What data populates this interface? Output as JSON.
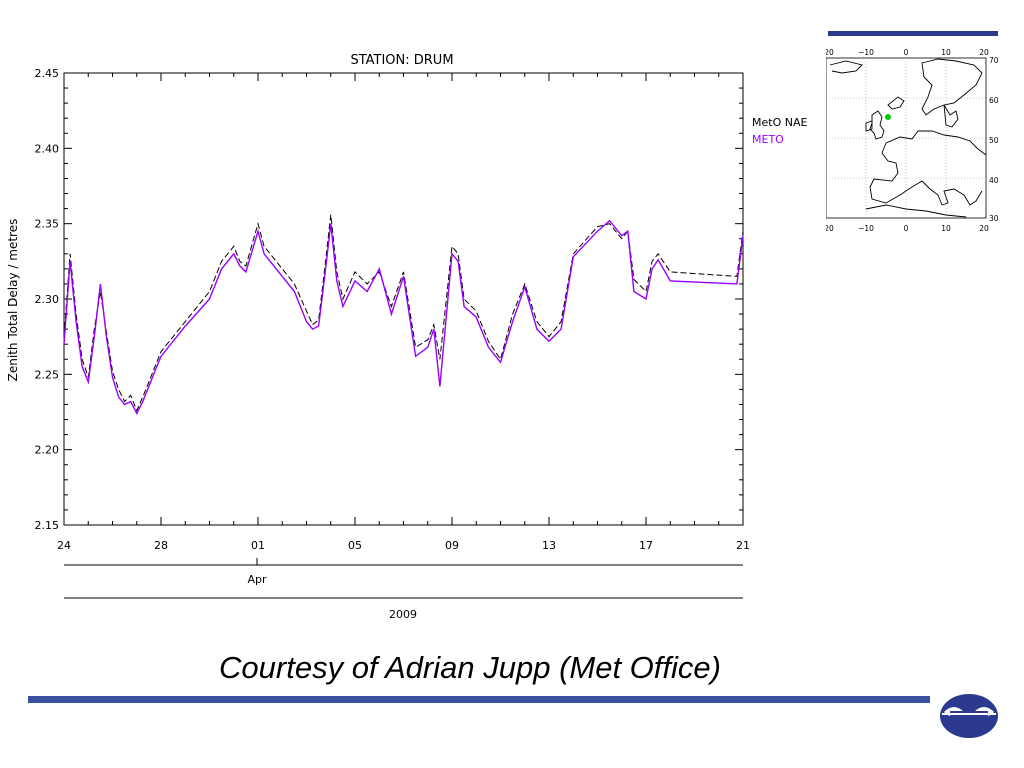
{
  "slide": {
    "caption": "Courtesy of Adrian Jupp (Met Office)",
    "rule_color": "#3a4fa0"
  },
  "legend": {
    "items": [
      {
        "label": "MetO NAE",
        "color": "#000000"
      },
      {
        "label": "METO",
        "color": "#9900ff"
      }
    ]
  },
  "map": {
    "top_ticks": [
      "20",
      "−10",
      "0",
      "10",
      "20"
    ],
    "bottom_ticks": [
      "20",
      "−10",
      "0",
      "10",
      "20"
    ],
    "right_ticks": [
      "70",
      "60",
      "50",
      "40",
      "30"
    ],
    "marker_color": "#00cc00"
  },
  "chart_data": {
    "type": "line",
    "title": "STATION: DRUM",
    "xlabel": "",
    "ylabel": "Zenith Total Delay / metres",
    "ylim": [
      2.15,
      2.45
    ],
    "yticks": [
      "2.15",
      "2.20",
      "2.25",
      "2.30",
      "2.35",
      "2.40",
      "2.45"
    ],
    "xlim": [
      "2009-03-24",
      "2009-04-21"
    ],
    "xticks": [
      "24",
      "28",
      "01",
      "05",
      "09",
      "13",
      "17",
      "21"
    ],
    "x_month_label": "Apr",
    "x_year_label": "2009",
    "grid": false,
    "series": [
      {
        "name": "MetO NAE",
        "color": "#000000",
        "dash": "6,3",
        "x": [
          "2009-03-24T00",
          "2009-03-24T06",
          "2009-03-24T12",
          "2009-03-24T18",
          "2009-03-25T00",
          "2009-03-25T06",
          "2009-03-25T12",
          "2009-03-25T18",
          "2009-03-26T00",
          "2009-03-26T06",
          "2009-03-26T12",
          "2009-03-26T18",
          "2009-03-27T00",
          "2009-03-27T06",
          "2009-03-27T12",
          "2009-03-27T18",
          "2009-03-28T00",
          "2009-03-29T00",
          "2009-03-30T00",
          "2009-03-30T12",
          "2009-03-31T00",
          "2009-03-31T06",
          "2009-03-31T12",
          "2009-04-01T00",
          "2009-04-01T06",
          "2009-04-01T12",
          "2009-04-02T00",
          "2009-04-02T12",
          "2009-04-03T00",
          "2009-04-03T06",
          "2009-04-03T12",
          "2009-04-03T18",
          "2009-04-04T00",
          "2009-04-04T06",
          "2009-04-04T12",
          "2009-04-05T00",
          "2009-04-05T12",
          "2009-04-06T00",
          "2009-04-06T12",
          "2009-04-07T00",
          "2009-04-07T12",
          "2009-04-08T00",
          "2009-04-08T06",
          "2009-04-08T12",
          "2009-04-09T00",
          "2009-04-09T06",
          "2009-04-09T12",
          "2009-04-10T00",
          "2009-04-10T12",
          "2009-04-11T00",
          "2009-04-11T12",
          "2009-04-12T00",
          "2009-04-12T12",
          "2009-04-13T00",
          "2009-04-13T12",
          "2009-04-14T00",
          "2009-04-15T00",
          "2009-04-15T12",
          "2009-04-16T00",
          "2009-04-16T06",
          "2009-04-16T12",
          "2009-04-17T00",
          "2009-04-17T06",
          "2009-04-17T12",
          "2009-04-18T00",
          "2009-04-20T18",
          "2009-04-21T00"
        ],
        "y": [
          2.275,
          2.33,
          2.29,
          2.26,
          2.248,
          2.28,
          2.305,
          2.278,
          2.252,
          2.24,
          2.232,
          2.236,
          2.226,
          2.235,
          2.245,
          2.255,
          2.265,
          2.285,
          2.305,
          2.325,
          2.335,
          2.325,
          2.322,
          2.35,
          2.335,
          2.33,
          2.32,
          2.31,
          2.292,
          2.283,
          2.286,
          2.32,
          2.356,
          2.318,
          2.3,
          2.318,
          2.31,
          2.318,
          2.295,
          2.318,
          2.268,
          2.273,
          2.283,
          2.26,
          2.335,
          2.33,
          2.3,
          2.292,
          2.272,
          2.26,
          2.29,
          2.31,
          2.285,
          2.275,
          2.285,
          2.33,
          2.348,
          2.35,
          2.34,
          2.345,
          2.313,
          2.305,
          2.325,
          2.33,
          2.318,
          2.315,
          2.345
        ]
      },
      {
        "name": "METO",
        "color": "#9900ff",
        "dash": "",
        "x": [
          "2009-03-24T00",
          "2009-03-24T06",
          "2009-03-24T12",
          "2009-03-24T18",
          "2009-03-25T00",
          "2009-03-25T06",
          "2009-03-25T12",
          "2009-03-25T18",
          "2009-03-26T00",
          "2009-03-26T06",
          "2009-03-26T12",
          "2009-03-26T18",
          "2009-03-27T00",
          "2009-03-27T06",
          "2009-03-27T12",
          "2009-03-27T18",
          "2009-03-28T00",
          "2009-03-29T00",
          "2009-03-30T00",
          "2009-03-30T12",
          "2009-03-31T00",
          "2009-03-31T06",
          "2009-03-31T12",
          "2009-04-01T00",
          "2009-04-01T06",
          "2009-04-01T12",
          "2009-04-02T00",
          "2009-04-02T12",
          "2009-04-03T00",
          "2009-04-03T06",
          "2009-04-03T12",
          "2009-04-03T18",
          "2009-04-04T00",
          "2009-04-04T06",
          "2009-04-04T12",
          "2009-04-05T00",
          "2009-04-05T12",
          "2009-04-06T00",
          "2009-04-06T12",
          "2009-04-07T00",
          "2009-04-07T12",
          "2009-04-08T00",
          "2009-04-08T06",
          "2009-04-08T12",
          "2009-04-09T00",
          "2009-04-09T06",
          "2009-04-09T12",
          "2009-04-10T00",
          "2009-04-10T12",
          "2009-04-11T00",
          "2009-04-11T12",
          "2009-04-12T00",
          "2009-04-12T12",
          "2009-04-13T00",
          "2009-04-13T12",
          "2009-04-14T00",
          "2009-04-15T00",
          "2009-04-15T12",
          "2009-04-16T00",
          "2009-04-16T06",
          "2009-04-16T12",
          "2009-04-17T00",
          "2009-04-17T06",
          "2009-04-17T12",
          "2009-04-18T00",
          "2009-04-20T18",
          "2009-04-21T00"
        ],
        "y": [
          2.27,
          2.325,
          2.285,
          2.255,
          2.245,
          2.275,
          2.31,
          2.275,
          2.248,
          2.235,
          2.23,
          2.232,
          2.224,
          2.232,
          2.242,
          2.252,
          2.262,
          2.282,
          2.3,
          2.32,
          2.33,
          2.322,
          2.318,
          2.345,
          2.33,
          2.325,
          2.315,
          2.305,
          2.285,
          2.28,
          2.282,
          2.315,
          2.35,
          2.312,
          2.295,
          2.312,
          2.305,
          2.32,
          2.29,
          2.315,
          2.262,
          2.268,
          2.28,
          2.242,
          2.33,
          2.325,
          2.295,
          2.288,
          2.268,
          2.258,
          2.285,
          2.308,
          2.28,
          2.272,
          2.28,
          2.328,
          2.345,
          2.352,
          2.342,
          2.345,
          2.305,
          2.3,
          2.32,
          2.326,
          2.312,
          2.31,
          2.342
        ]
      }
    ]
  }
}
